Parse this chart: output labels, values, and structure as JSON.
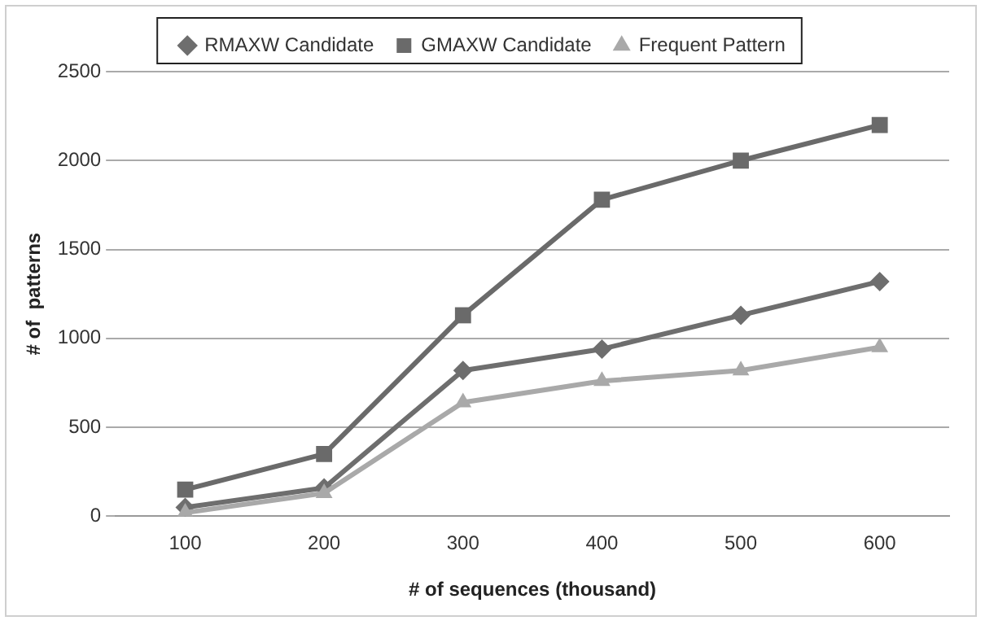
{
  "chart_data": {
    "type": "line",
    "xlabel": "# of sequences (thousand)",
    "ylabel": "# of  patterns",
    "categories": [
      "100",
      "200",
      "300",
      "400",
      "500",
      "600"
    ],
    "series": [
      {
        "name": "RMAXW Candidate",
        "color": "#6e6e6e",
        "marker": "diamond",
        "values": [
          50,
          160,
          820,
          940,
          1130,
          1320
        ]
      },
      {
        "name": "GMAXW Candidate",
        "color": "#6a6a6a",
        "marker": "square",
        "values": [
          150,
          350,
          1130,
          1780,
          2000,
          2200
        ]
      },
      {
        "name": "Frequent Pattern",
        "color": "#a9a9a9",
        "marker": "triangle",
        "values": [
          20,
          130,
          640,
          760,
          820,
          950
        ]
      }
    ],
    "ylim": [
      0,
      2500
    ],
    "yticks": [
      0,
      500,
      1000,
      1500,
      2000,
      2500
    ],
    "grid": "y",
    "legend": "top",
    "line_style": "solid"
  }
}
